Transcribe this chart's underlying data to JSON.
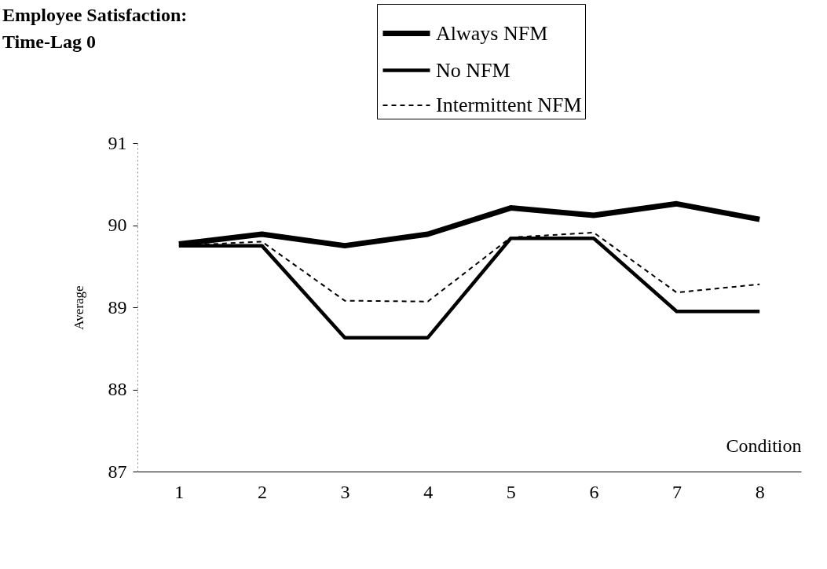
{
  "chart_data": {
    "type": "line",
    "title": [
      "Employee Satisfaction:",
      "Time-Lag 0"
    ],
    "xlabel": "Condition",
    "ylabel": "Average",
    "categories": [
      "1",
      "2",
      "3",
      "4",
      "5",
      "6",
      "7",
      "8"
    ],
    "series": [
      {
        "name": "Always NFM",
        "color": "#000000",
        "line_style": "solid",
        "values": [
          89.77,
          89.89,
          89.75,
          89.89,
          90.21,
          90.12,
          90.26,
          90.07
        ]
      },
      {
        "name": "No NFM",
        "color": "#000000",
        "line_style": "solid",
        "values": [
          89.75,
          89.75,
          88.63,
          88.63,
          89.84,
          89.84,
          88.95,
          88.95
        ]
      },
      {
        "name": "Intermittent NFM",
        "color": "#000000",
        "line_style": "dashed",
        "values": [
          89.75,
          89.8,
          89.08,
          89.07,
          89.85,
          89.91,
          89.18,
          89.28
        ]
      }
    ],
    "ylim": [
      87,
      91
    ],
    "yticks": [
      87,
      88,
      89,
      90,
      91
    ],
    "grid": false,
    "legend": "top right",
    "marker": "none"
  }
}
